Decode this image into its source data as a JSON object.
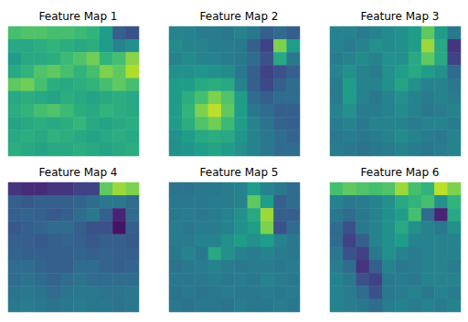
{
  "chart_data": [
    {
      "type": "heatmap",
      "title": "Feature Map 1",
      "color": "viridis",
      "tick_labels": false,
      "value_range": [
        0,
        1
      ],
      "cells": [
        [
          0.7,
          0.72,
          0.72,
          0.7,
          0.7,
          0.68,
          0.65,
          0.55,
          0.3,
          0.25
        ],
        [
          0.6,
          0.6,
          0.62,
          0.65,
          0.62,
          0.6,
          0.62,
          0.55,
          0.45,
          0.5
        ],
        [
          0.55,
          0.6,
          0.6,
          0.62,
          0.68,
          0.72,
          0.78,
          0.65,
          0.7,
          0.82
        ],
        [
          0.6,
          0.65,
          0.72,
          0.75,
          0.7,
          0.65,
          0.7,
          0.8,
          0.75,
          0.88
        ],
        [
          0.75,
          0.78,
          0.7,
          0.62,
          0.6,
          0.62,
          0.65,
          0.7,
          0.75,
          0.7
        ],
        [
          0.6,
          0.62,
          0.6,
          0.58,
          0.62,
          0.6,
          0.58,
          0.6,
          0.62,
          0.6
        ],
        [
          0.62,
          0.65,
          0.7,
          0.72,
          0.68,
          0.62,
          0.6,
          0.65,
          0.62,
          0.6
        ],
        [
          0.58,
          0.6,
          0.62,
          0.6,
          0.62,
          0.66,
          0.6,
          0.58,
          0.6,
          0.62
        ],
        [
          0.6,
          0.62,
          0.6,
          0.64,
          0.62,
          0.6,
          0.58,
          0.6,
          0.62,
          0.6
        ],
        [
          0.62,
          0.6,
          0.58,
          0.6,
          0.6,
          0.62,
          0.6,
          0.58,
          0.6,
          0.62
        ]
      ]
    },
    {
      "type": "heatmap",
      "title": "Feature Map 2",
      "color": "viridis",
      "tick_labels": false,
      "value_range": [
        0,
        1
      ],
      "cells": [
        [
          0.45,
          0.45,
          0.42,
          0.42,
          0.4,
          0.45,
          0.4,
          0.3,
          0.35,
          0.3
        ],
        [
          0.48,
          0.45,
          0.45,
          0.42,
          0.42,
          0.4,
          0.3,
          0.2,
          0.8,
          0.55
        ],
        [
          0.45,
          0.48,
          0.45,
          0.45,
          0.42,
          0.4,
          0.35,
          0.25,
          0.6,
          0.4
        ],
        [
          0.5,
          0.5,
          0.52,
          0.5,
          0.48,
          0.4,
          0.3,
          0.2,
          0.25,
          0.3
        ],
        [
          0.55,
          0.55,
          0.6,
          0.62,
          0.6,
          0.45,
          0.3,
          0.22,
          0.3,
          0.35
        ],
        [
          0.55,
          0.62,
          0.7,
          0.8,
          0.72,
          0.55,
          0.35,
          0.3,
          0.35,
          0.35
        ],
        [
          0.55,
          0.65,
          0.8,
          0.9,
          0.75,
          0.55,
          0.4,
          0.35,
          0.3,
          0.3
        ],
        [
          0.55,
          0.62,
          0.72,
          0.78,
          0.68,
          0.55,
          0.45,
          0.38,
          0.32,
          0.3
        ],
        [
          0.5,
          0.55,
          0.6,
          0.62,
          0.6,
          0.52,
          0.45,
          0.4,
          0.35,
          0.32
        ],
        [
          0.5,
          0.52,
          0.55,
          0.58,
          0.55,
          0.5,
          0.45,
          0.4,
          0.35,
          0.35
        ]
      ]
    },
    {
      "type": "heatmap",
      "title": "Feature Map 3",
      "color": "viridis",
      "tick_labels": false,
      "value_range": [
        0,
        1
      ],
      "cells": [
        [
          0.45,
          0.45,
          0.42,
          0.45,
          0.48,
          0.5,
          0.55,
          0.75,
          0.55,
          0.4
        ],
        [
          0.45,
          0.42,
          0.45,
          0.5,
          0.48,
          0.5,
          0.55,
          0.85,
          0.6,
          0.15
        ],
        [
          0.42,
          0.45,
          0.48,
          0.45,
          0.5,
          0.5,
          0.6,
          0.75,
          0.6,
          0.2
        ],
        [
          0.45,
          0.5,
          0.45,
          0.42,
          0.5,
          0.55,
          0.6,
          0.55,
          0.5,
          0.35
        ],
        [
          0.42,
          0.55,
          0.45,
          0.45,
          0.5,
          0.58,
          0.5,
          0.45,
          0.45,
          0.4
        ],
        [
          0.42,
          0.55,
          0.45,
          0.4,
          0.45,
          0.5,
          0.45,
          0.42,
          0.45,
          0.42
        ],
        [
          0.45,
          0.5,
          0.42,
          0.42,
          0.45,
          0.48,
          0.45,
          0.4,
          0.42,
          0.45
        ],
        [
          0.42,
          0.45,
          0.4,
          0.45,
          0.45,
          0.45,
          0.42,
          0.45,
          0.45,
          0.42
        ],
        [
          0.4,
          0.42,
          0.4,
          0.42,
          0.45,
          0.48,
          0.45,
          0.42,
          0.4,
          0.45
        ],
        [
          0.42,
          0.4,
          0.38,
          0.4,
          0.42,
          0.45,
          0.42,
          0.4,
          0.42,
          0.45
        ]
      ]
    },
    {
      "type": "heatmap",
      "title": "Feature Map 4",
      "color": "viridis",
      "tick_labels": false,
      "value_range": [
        0,
        1
      ],
      "cells": [
        [
          0.15,
          0.12,
          0.12,
          0.15,
          0.15,
          0.2,
          0.2,
          0.75,
          0.85,
          0.8
        ],
        [
          0.3,
          0.28,
          0.3,
          0.3,
          0.3,
          0.32,
          0.35,
          0.4,
          0.4,
          0.35
        ],
        [
          0.3,
          0.32,
          0.3,
          0.28,
          0.3,
          0.35,
          0.4,
          0.3,
          0.1,
          0.35
        ],
        [
          0.28,
          0.3,
          0.32,
          0.35,
          0.35,
          0.3,
          0.25,
          0.25,
          0.05,
          0.3
        ],
        [
          0.3,
          0.3,
          0.28,
          0.3,
          0.32,
          0.3,
          0.28,
          0.3,
          0.3,
          0.28
        ],
        [
          0.32,
          0.3,
          0.3,
          0.3,
          0.3,
          0.32,
          0.3,
          0.32,
          0.3,
          0.3
        ],
        [
          0.35,
          0.35,
          0.32,
          0.3,
          0.3,
          0.35,
          0.35,
          0.32,
          0.3,
          0.32
        ],
        [
          0.35,
          0.38,
          0.35,
          0.32,
          0.35,
          0.38,
          0.35,
          0.35,
          0.35,
          0.35
        ],
        [
          0.38,
          0.4,
          0.38,
          0.35,
          0.38,
          0.4,
          0.4,
          0.38,
          0.38,
          0.4
        ],
        [
          0.4,
          0.42,
          0.4,
          0.38,
          0.4,
          0.42,
          0.4,
          0.4,
          0.38,
          0.4
        ]
      ]
    },
    {
      "type": "heatmap",
      "title": "Feature Map 5",
      "color": "viridis",
      "tick_labels": false,
      "value_range": [
        0,
        1
      ],
      "cells": [
        [
          0.38,
          0.38,
          0.4,
          0.4,
          0.42,
          0.45,
          0.55,
          0.45,
          0.4,
          0.35
        ],
        [
          0.4,
          0.4,
          0.4,
          0.42,
          0.42,
          0.45,
          0.75,
          0.55,
          0.3,
          0.35
        ],
        [
          0.4,
          0.42,
          0.4,
          0.42,
          0.45,
          0.5,
          0.6,
          0.85,
          0.3,
          0.3
        ],
        [
          0.42,
          0.4,
          0.42,
          0.42,
          0.45,
          0.5,
          0.55,
          0.8,
          0.25,
          0.35
        ],
        [
          0.42,
          0.42,
          0.45,
          0.45,
          0.5,
          0.55,
          0.5,
          0.55,
          0.45,
          0.4
        ],
        [
          0.4,
          0.45,
          0.4,
          0.6,
          0.5,
          0.45,
          0.42,
          0.45,
          0.42,
          0.4
        ],
        [
          0.38,
          0.4,
          0.42,
          0.45,
          0.42,
          0.4,
          0.42,
          0.42,
          0.4,
          0.42
        ],
        [
          0.4,
          0.4,
          0.4,
          0.42,
          0.4,
          0.42,
          0.4,
          0.45,
          0.42,
          0.4
        ],
        [
          0.38,
          0.4,
          0.38,
          0.4,
          0.42,
          0.4,
          0.4,
          0.42,
          0.4,
          0.42
        ],
        [
          0.4,
          0.38,
          0.4,
          0.4,
          0.38,
          0.42,
          0.4,
          0.4,
          0.42,
          0.4
        ]
      ]
    },
    {
      "type": "heatmap",
      "title": "Feature Map 6",
      "color": "viridis",
      "tick_labels": false,
      "value_range": [
        0,
        1
      ],
      "cells": [
        [
          0.7,
          0.75,
          0.72,
          0.7,
          0.72,
          0.85,
          0.7,
          0.65,
          0.9,
          0.8
        ],
        [
          0.45,
          0.4,
          0.42,
          0.45,
          0.5,
          0.6,
          0.65,
          0.7,
          0.5,
          0.65
        ],
        [
          0.4,
          0.35,
          0.4,
          0.45,
          0.5,
          0.55,
          0.7,
          0.35,
          0.1,
          0.6
        ],
        [
          0.35,
          0.25,
          0.4,
          0.45,
          0.5,
          0.6,
          0.5,
          0.45,
          0.4,
          0.5
        ],
        [
          0.35,
          0.2,
          0.3,
          0.45,
          0.5,
          0.55,
          0.45,
          0.45,
          0.45,
          0.45
        ],
        [
          0.4,
          0.25,
          0.2,
          0.4,
          0.5,
          0.45,
          0.42,
          0.45,
          0.45,
          0.45
        ],
        [
          0.42,
          0.35,
          0.15,
          0.3,
          0.45,
          0.4,
          0.42,
          0.45,
          0.45,
          0.42
        ],
        [
          0.45,
          0.4,
          0.25,
          0.2,
          0.4,
          0.42,
          0.4,
          0.45,
          0.45,
          0.45
        ],
        [
          0.45,
          0.42,
          0.35,
          0.25,
          0.4,
          0.42,
          0.45,
          0.4,
          0.45,
          0.42
        ],
        [
          0.45,
          0.42,
          0.4,
          0.35,
          0.42,
          0.45,
          0.42,
          0.45,
          0.42,
          0.45
        ]
      ]
    }
  ]
}
